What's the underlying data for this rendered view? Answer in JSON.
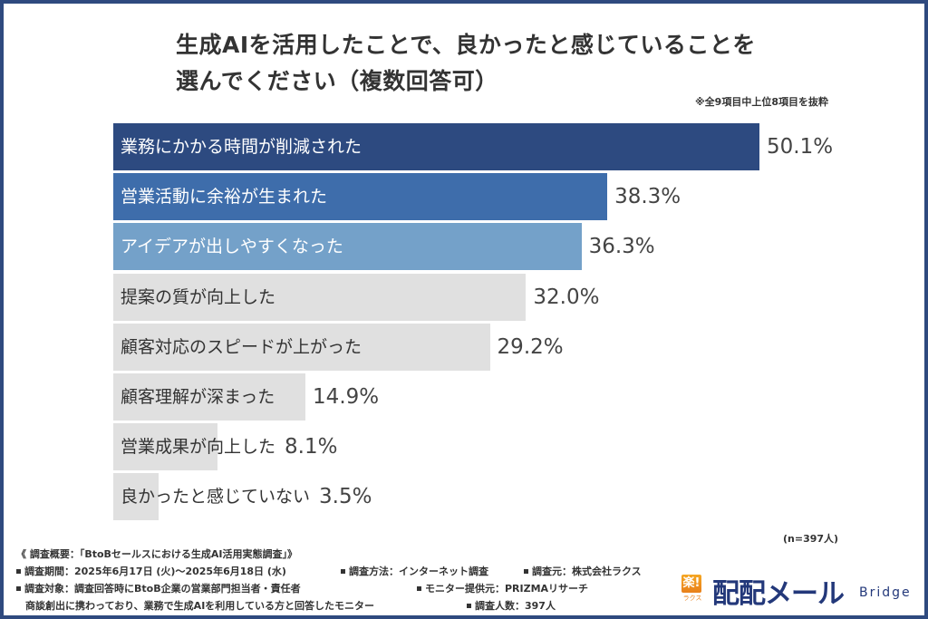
{
  "title_lines": [
    "生成AIを活用したことで、良かったと感じていることを",
    "選んでください（複数回答可）"
  ],
  "note": "※全9項目中上位8項目を抜粋",
  "chart_data": {
    "type": "bar",
    "orientation": "horizontal",
    "title": "生成AIを活用したことで、良かったと感じていることを選んでください（複数回答可）",
    "categories": [
      "業務にかかる時間が削減された",
      "営業活動に余裕が生まれた",
      "アイデアが出しやすくなった",
      "提案の質が向上した",
      "顧客対応のスピードが上がった",
      "顧客理解が深まった",
      "営業成果が向上した",
      "良かったと感じていない"
    ],
    "values": [
      50.1,
      38.3,
      36.3,
      32.0,
      29.2,
      14.9,
      8.1,
      3.5
    ],
    "value_labels": [
      "50.1%",
      "38.3%",
      "36.3%",
      "32.0%",
      "29.2%",
      "14.9%",
      "8.1%",
      "3.5%"
    ],
    "unit": "%",
    "bar_colors": [
      "#2d4a80",
      "#3e6dab",
      "#74a1c9",
      "#e0e0e0",
      "#e0e0e0",
      "#e0e0e0",
      "#e0e0e0",
      "#e0e0e0"
    ],
    "label_colors": [
      "#ffffff",
      "#ffffff",
      "#ffffff",
      "#333333",
      "#333333",
      "#333333",
      "#333333",
      "#333333"
    ],
    "xlabel": "",
    "ylabel": "",
    "xlim": [
      0,
      50.1
    ],
    "grid": false,
    "legend": "none"
  },
  "sample_note": "(n=397人)",
  "footer": {
    "heading": "《 調査概要：「BtoBセールスにおける生成AI活用実態調査」》",
    "period": "調査期間：2025年6月17日 (火)〜2025年6月18日 (水)",
    "method": "調査方法：インターネット調査",
    "source": "調査元：株式会社ラクス",
    "target": "調査対象：調査回答時にBtoB企業の営業部門担当者・責任者",
    "target_cont": "商談創出に携わっており、業務で生成AIを利用している方と回答したモニター",
    "provider": "モニター提供元：PRIZMAリサーチ",
    "count": "調査人数：397人"
  },
  "logo": {
    "mark": "楽!",
    "sub": "ラクス",
    "main": "配配メール",
    "suffix": "Bridge"
  },
  "colors": {
    "frame": "#2f4a7f",
    "brand": "#23387a"
  }
}
